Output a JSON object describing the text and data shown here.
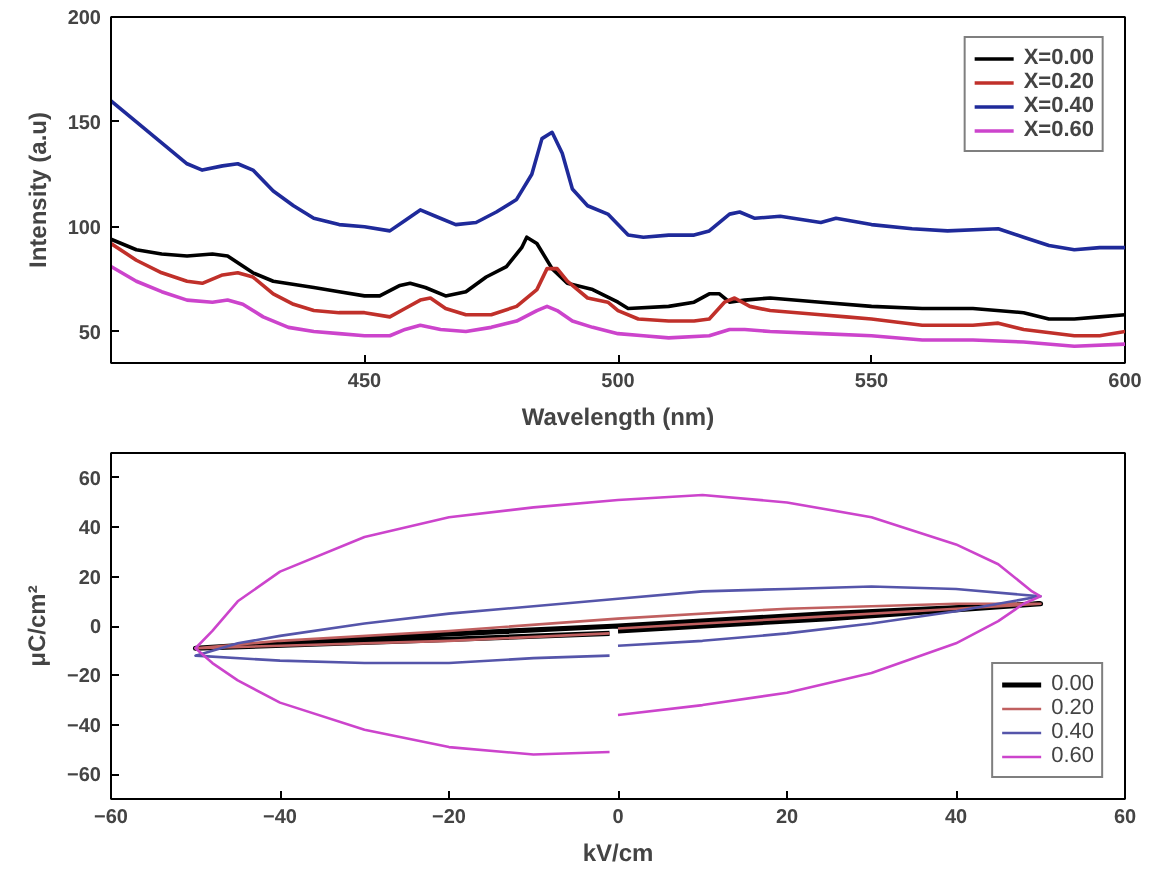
{
  "chart_data": [
    {
      "type": "line",
      "xlabel": "Wavelength (nm)",
      "ylabel": "Intensity (a.u)",
      "xlim": [
        400,
        600
      ],
      "ylim": [
        35,
        200
      ],
      "xticks": [
        450,
        500,
        550,
        600
      ],
      "yticks": [
        50,
        100,
        150,
        200
      ],
      "grid": false,
      "legend": "top right",
      "series": [
        {
          "name": "X=0.00",
          "color": "#000000",
          "x": [
            400,
            405,
            410,
            415,
            420,
            423,
            428,
            432,
            440,
            445,
            450,
            453,
            457,
            459,
            462,
            466,
            470,
            474,
            478,
            481,
            482,
            484,
            487,
            490,
            495,
            500,
            502,
            510,
            515,
            518,
            520,
            522,
            525,
            530,
            540,
            550,
            560,
            570,
            580,
            585,
            590,
            595,
            600
          ],
          "values": [
            94,
            89,
            87,
            86,
            87,
            86,
            78,
            74,
            71,
            69,
            67,
            67,
            72,
            73,
            71,
            67,
            69,
            76,
            81,
            90,
            95,
            92,
            80,
            73,
            70,
            64,
            61,
            62,
            64,
            68,
            68,
            64,
            65,
            66,
            64,
            62,
            61,
            61,
            59,
            56,
            56,
            57,
            58
          ]
        },
        {
          "name": "X=0.20",
          "color": "#c0302a",
          "x": [
            400,
            405,
            410,
            415,
            418,
            422,
            425,
            428,
            432,
            436,
            440,
            445,
            450,
            455,
            458,
            461,
            463,
            466,
            470,
            475,
            480,
            484,
            486,
            488,
            490,
            494,
            498,
            500,
            504,
            510,
            515,
            518,
            521,
            523,
            526,
            530,
            540,
            545,
            550,
            560,
            570,
            575,
            580,
            590,
            595,
            600
          ],
          "values": [
            92,
            84,
            78,
            74,
            73,
            77,
            78,
            76,
            68,
            63,
            60,
            59,
            59,
            57,
            61,
            65,
            66,
            61,
            58,
            58,
            62,
            70,
            80,
            80,
            74,
            66,
            64,
            60,
            56,
            55,
            55,
            56,
            64,
            66,
            62,
            60,
            58,
            57,
            56,
            53,
            53,
            54,
            51,
            48,
            48,
            50
          ]
        },
        {
          "name": "X=0.40",
          "color": "#1f2a9a",
          "x": [
            400,
            405,
            410,
            415,
            418,
            422,
            425,
            428,
            432,
            436,
            440,
            445,
            450,
            455,
            458,
            461,
            464,
            468,
            472,
            476,
            480,
            483,
            485,
            487,
            489,
            491,
            494,
            498,
            502,
            505,
            510,
            515,
            518,
            522,
            524,
            527,
            532,
            540,
            543,
            550,
            558,
            565,
            575,
            580,
            585,
            590,
            595,
            600
          ],
          "values": [
            160,
            150,
            140,
            130,
            127,
            129,
            130,
            127,
            117,
            110,
            104,
            101,
            100,
            98,
            103,
            108,
            105,
            101,
            102,
            107,
            113,
            125,
            142,
            145,
            135,
            118,
            110,
            106,
            96,
            95,
            96,
            96,
            98,
            106,
            107,
            104,
            105,
            102,
            104,
            101,
            99,
            98,
            99,
            95,
            91,
            89,
            90,
            90
          ]
        },
        {
          "name": "X=0.60",
          "color": "#cc44cc",
          "x": [
            400,
            405,
            410,
            415,
            420,
            423,
            426,
            430,
            435,
            440,
            445,
            450,
            455,
            458,
            461,
            465,
            470,
            475,
            480,
            484,
            486,
            488,
            491,
            495,
            500,
            505,
            510,
            518,
            522,
            525,
            530,
            540,
            550,
            560,
            570,
            580,
            590,
            600
          ],
          "values": [
            81,
            74,
            69,
            65,
            64,
            65,
            63,
            57,
            52,
            50,
            49,
            48,
            48,
            51,
            53,
            51,
            50,
            52,
            55,
            60,
            62,
            60,
            55,
            52,
            49,
            48,
            47,
            48,
            51,
            51,
            50,
            49,
            48,
            46,
            46,
            45,
            43,
            44
          ]
        }
      ]
    },
    {
      "type": "line",
      "xlabel": "kV/cm",
      "ylabel": "μC/cm²",
      "xlim": [
        -60,
        60
      ],
      "ylim": [
        -70,
        70
      ],
      "xticks": [
        -60,
        -40,
        -20,
        0,
        20,
        40,
        60
      ],
      "yticks": [
        -60,
        -40,
        -20,
        0,
        20,
        40,
        60
      ],
      "grid": false,
      "legend": "bottom right",
      "series": [
        {
          "name": "0.00",
          "color": "#000000",
          "x": [
            0,
            25,
            50,
            25,
            0,
            -25,
            -50,
            -25,
            -1
          ],
          "values": [
            -2,
            3,
            9,
            5,
            0,
            -4,
            -9,
            -6,
            -3
          ]
        },
        {
          "name": "0.20",
          "color": "#c06060",
          "x": [
            0,
            20,
            40,
            50,
            40,
            20,
            0,
            -20,
            -40,
            -50,
            -40,
            -20,
            -1
          ],
          "values": [
            -1,
            3,
            7,
            9,
            9,
            7,
            3,
            -2,
            -6,
            -9,
            -8,
            -6,
            -3
          ]
        },
        {
          "name": "0.40",
          "color": "#5555aa",
          "x": [
            0,
            10,
            20,
            30,
            40,
            50,
            40,
            30,
            20,
            10,
            0,
            -10,
            -20,
            -30,
            -40,
            -45,
            -50,
            -40,
            -30,
            -20,
            -10,
            -1
          ],
          "values": [
            -8,
            -6,
            -3,
            1,
            6,
            12,
            15,
            16,
            15,
            14,
            11,
            8,
            5,
            1,
            -4,
            -7,
            -12,
            -14,
            -15,
            -15,
            -13,
            -12
          ]
        },
        {
          "name": "0.60",
          "color": "#cc44cc",
          "x": [
            0,
            10,
            20,
            30,
            40,
            45,
            48,
            50,
            49,
            45,
            40,
            30,
            20,
            10,
            0,
            -10,
            -20,
            -30,
            -40,
            -45,
            -48,
            -50,
            -48,
            -45,
            -40,
            -30,
            -20,
            -10,
            -1
          ],
          "values": [
            -36,
            -32,
            -27,
            -19,
            -7,
            2,
            9,
            12,
            14,
            25,
            33,
            44,
            50,
            53,
            51,
            48,
            44,
            36,
            22,
            10,
            -2,
            -9,
            -15,
            -22,
            -31,
            -42,
            -49,
            -52,
            -51
          ]
        }
      ]
    }
  ]
}
